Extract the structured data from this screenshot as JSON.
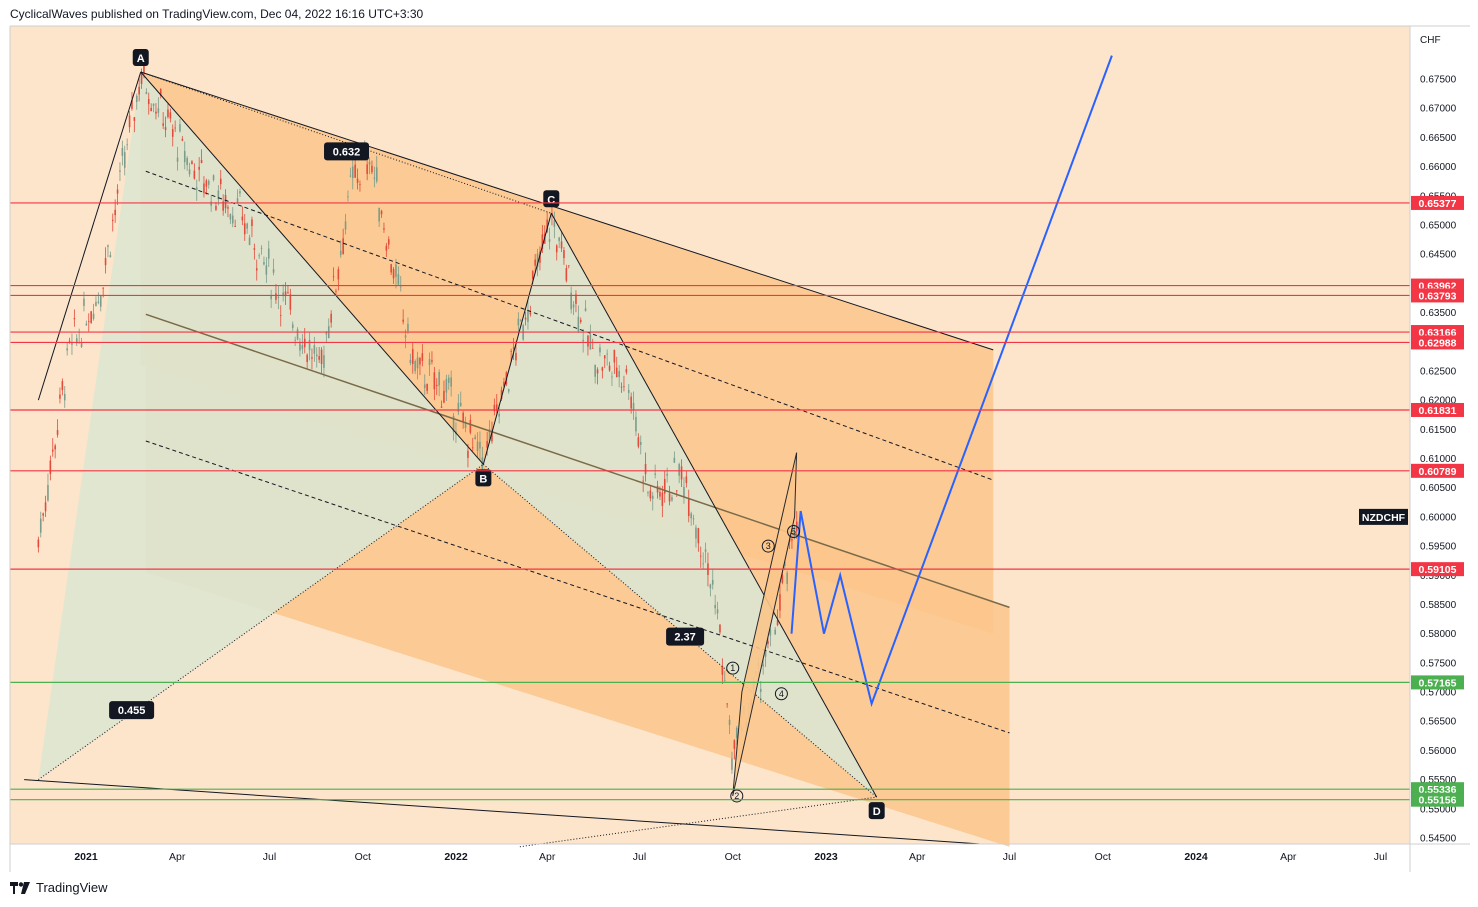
{
  "header": {
    "text": "CyclicalWaves published on TradingView.com, Dec 04, 2022 16:16 UTC+3:30"
  },
  "footer": {
    "logo_text": "TradingView",
    "logo_icon": "tradingview-logo-icon"
  },
  "chart_data": {
    "type": "candlestick",
    "symbol": "NZDCHF",
    "currency": "CHF",
    "y_ticks": [
      "0.67500",
      "0.67000",
      "0.66500",
      "0.66000",
      "0.65500",
      "0.65000",
      "0.64500",
      "0.64000",
      "0.63500",
      "0.63000",
      "0.62500",
      "0.62000",
      "0.61500",
      "0.61000",
      "0.60500",
      "0.60000",
      "0.59500",
      "0.59000",
      "0.58500",
      "0.58000",
      "0.57500",
      "0.57000",
      "0.56500",
      "0.56000",
      "0.55500",
      "0.55000",
      "0.54500"
    ],
    "ylim": [
      0.5435,
      0.6795
    ],
    "x_ticks": [
      {
        "label": "2021",
        "date": "2021-01-01",
        "strong": true
      },
      {
        "label": "Apr",
        "date": "2021-04-01"
      },
      {
        "label": "Jul",
        "date": "2021-07-01"
      },
      {
        "label": "Oct",
        "date": "2021-10-01"
      },
      {
        "label": "2022",
        "date": "2022-01-01",
        "strong": true
      },
      {
        "label": "Apr",
        "date": "2022-04-01"
      },
      {
        "label": "Jul",
        "date": "2022-07-01"
      },
      {
        "label": "Oct",
        "date": "2022-10-01"
      },
      {
        "label": "2023",
        "date": "2023-01-01",
        "strong": true
      },
      {
        "label": "Apr",
        "date": "2023-04-01"
      },
      {
        "label": "Jul",
        "date": "2023-07-01"
      },
      {
        "label": "Oct",
        "date": "2023-10-01"
      },
      {
        "label": "2024",
        "date": "2024-01-01",
        "strong": true
      },
      {
        "label": "Apr",
        "date": "2024-04-01"
      },
      {
        "label": "Jul",
        "date": "2024-07-01"
      }
    ],
    "price_path": [
      {
        "date": "2020-11-15",
        "price": 0.596
      },
      {
        "date": "2020-12-15",
        "price": 0.628
      },
      {
        "date": "2021-01-15",
        "price": 0.639
      },
      {
        "date": "2021-02-24",
        "price": 0.676
      },
      {
        "date": "2021-04-15",
        "price": 0.66
      },
      {
        "date": "2021-06-01",
        "price": 0.652
      },
      {
        "date": "2021-08-20",
        "price": 0.625
      },
      {
        "date": "2021-09-20",
        "price": 0.657
      },
      {
        "date": "2021-10-08",
        "price": 0.662
      },
      {
        "date": "2021-11-20",
        "price": 0.626
      },
      {
        "date": "2021-12-20",
        "price": 0.622
      },
      {
        "date": "2022-01-28",
        "price": 0.609
      },
      {
        "date": "2022-04-05",
        "price": 0.651
      },
      {
        "date": "2022-05-15",
        "price": 0.628
      },
      {
        "date": "2022-06-20",
        "price": 0.624
      },
      {
        "date": "2022-07-10",
        "price": 0.604
      },
      {
        "date": "2022-08-15",
        "price": 0.607
      },
      {
        "date": "2022-09-15",
        "price": 0.585
      },
      {
        "date": "2022-10-01",
        "price": 0.558
      },
      {
        "date": "2022-10-20",
        "price": 0.569
      },
      {
        "date": "2022-11-10",
        "price": 0.58
      },
      {
        "date": "2022-11-25",
        "price": 0.592
      },
      {
        "date": "2022-12-04",
        "price": 0.601
      }
    ],
    "projection": [
      {
        "date": "2022-11-28",
        "price": 0.58
      },
      {
        "date": "2022-12-07",
        "price": 0.601
      },
      {
        "date": "2022-12-30",
        "price": 0.58
      },
      {
        "date": "2023-01-15",
        "price": 0.59
      },
      {
        "date": "2023-02-15",
        "price": 0.568
      },
      {
        "date": "2023-10-10",
        "price": 0.679
      }
    ],
    "pattern_points": [
      {
        "label": "A",
        "date": "2021-02-24",
        "price": 0.6762,
        "pos": "above"
      },
      {
        "label": "B",
        "date": "2022-01-28",
        "price": 0.609,
        "pos": "below"
      },
      {
        "label": "C",
        "date": "2022-04-05",
        "price": 0.652,
        "pos": "above"
      },
      {
        "label": "D",
        "date": "2023-02-20",
        "price": 0.552,
        "pos": "below"
      }
    ],
    "ratios": [
      {
        "label": "0.632",
        "date": "2021-09-15",
        "price": 0.6626
      },
      {
        "label": "0.455",
        "date": "2021-02-15",
        "price": 0.5669
      },
      {
        "label": "2.37",
        "date": "2022-08-15",
        "price": 0.5795
      }
    ],
    "waves": [
      {
        "label": "1",
        "date": "2022-10-01",
        "price": 0.5741
      },
      {
        "label": "2",
        "date": "2022-10-05",
        "price": 0.5522
      },
      {
        "label": "3",
        "date": "2022-11-05",
        "price": 0.595
      },
      {
        "label": "4",
        "date": "2022-11-18",
        "price": 0.5697
      },
      {
        "label": "5",
        "date": "2022-11-30",
        "price": 0.5975
      }
    ],
    "levels": [
      {
        "value": 0.65377,
        "label": "0.65377",
        "color": "#f23645"
      },
      {
        "value": 0.63962,
        "label": "0.63962",
        "color": "#f23645"
      },
      {
        "value": 0.63793,
        "label": "0.63793",
        "color": "#f23645"
      },
      {
        "value": 0.63166,
        "label": "0.63166",
        "color": "#f23645"
      },
      {
        "value": 0.62988,
        "label": "0.62988",
        "color": "#f23645"
      },
      {
        "value": 0.61831,
        "label": "0.61831",
        "color": "#f23645"
      },
      {
        "value": 0.60789,
        "label": "0.60789",
        "color": "#f23645"
      },
      {
        "value": 0.59105,
        "label": "0.59105",
        "color": "#f23645"
      },
      {
        "value": 0.57165,
        "label": "0.57165",
        "color": "#4caf50"
      },
      {
        "value": 0.55336,
        "label": "0.55336",
        "color": "#4caf50"
      },
      {
        "value": 0.55156,
        "label": "0.55156",
        "color": "#4caf50"
      }
    ],
    "symbol_tag_price": 0.6,
    "colors": {
      "background": "#fce5cb",
      "channel": "#fbc68b",
      "harmonic": "#dde5d0",
      "projection": "#2962ff",
      "candle_up": "#7a9c8a",
      "candle_down": "#e34a3a"
    },
    "grid": false
  }
}
